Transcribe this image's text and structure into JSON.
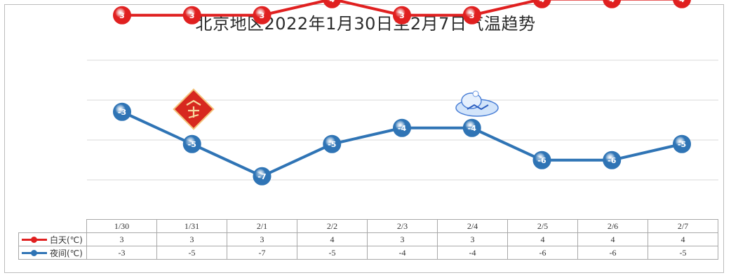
{
  "title": "北京地区2022年1月30日至2月7日气温趋势",
  "decorations": {
    "left_icon": "spring-diamond-icon",
    "right_icon": "snowflake-cloud-icon"
  },
  "colors": {
    "day": "#e02020",
    "night": "#2f74b5",
    "grid": "#d9d9d9"
  },
  "chart_data": {
    "type": "line",
    "title": "北京地区2022年1月30日至2月7日气温趋势",
    "categories": [
      "1/30",
      "1/31",
      "2/1",
      "2/2",
      "2/3",
      "2/4",
      "2/5",
      "2/6",
      "2/7"
    ],
    "series": [
      {
        "name": "白天(℃)",
        "values": [
          3,
          3,
          3,
          4,
          3,
          3,
          4,
          4,
          4
        ]
      },
      {
        "name": "夜间(℃)",
        "values": [
          -3,
          -5,
          -7,
          -5,
          -4,
          -4,
          -6,
          -6,
          -5
        ]
      }
    ],
    "grid": true,
    "legend": "data-table"
  }
}
